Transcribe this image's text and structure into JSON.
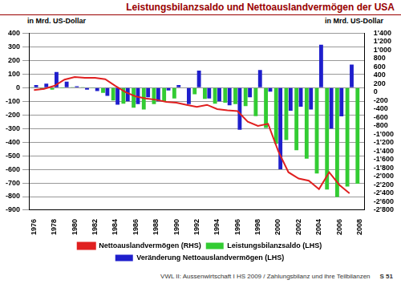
{
  "chart_data": {
    "type": "bar",
    "title": "Leistungsbilanzsaldo und Nettoauslandvermögen der USA",
    "y_label": "in Mrd. US-Dollar",
    "y2_label": "in Mrd. US-Dollar",
    "annotations": [
      "VWL II: Aussenwirtschaft I HS 2009 / Zahlungsbilanz und ihre Teilbilanzen",
      "S 51"
    ],
    "categories": [
      "1976",
      null,
      "1978",
      null,
      "1980",
      null,
      "1982",
      null,
      "1984",
      null,
      "1986",
      null,
      "1988",
      null,
      "1990",
      null,
      "1992",
      null,
      "1994",
      null,
      "1996",
      null,
      "1998",
      null,
      "2000",
      null,
      "2002",
      null,
      "2004",
      null,
      "2006",
      null,
      "2008"
    ],
    "series": [
      {
        "name": "Leistungsbilanzsaldo (LHS)",
        "type": "bar",
        "color": "#33cc33",
        "values": [
          4,
          -14,
          -15,
          -0.3,
          2,
          5,
          -5,
          -38,
          -94,
          -118,
          -147,
          -161,
          -121,
          -99,
          -79,
          3,
          -48,
          -82,
          -118,
          -110,
          -120,
          -136,
          -209,
          -296,
          -413,
          -385,
          -459,
          -521,
          -631,
          -749,
          -803,
          -726,
          -706
        ]
      },
      {
        "name": "Veränderung Nettoauslandvermögen (LHS)",
        "type": "bar",
        "color": "#1f1fcc",
        "values": [
          20,
          30,
          115,
          45,
          10,
          -15,
          -25,
          -60,
          -125,
          -100,
          -120,
          -70,
          -100,
          -20,
          20,
          -120,
          125,
          -80,
          -100,
          -130,
          -310,
          -70,
          130,
          -30,
          -600,
          -170,
          -140,
          -160,
          315,
          -300,
          -210,
          170,
          null
        ]
      },
      {
        "name": "Nettoauslandvermögen (RHS)",
        "type": "line",
        "axis": "y2",
        "color": "#e02020",
        "values": [
          50,
          80,
          150,
          300,
          360,
          340,
          340,
          310,
          150,
          0,
          -100,
          -150,
          -180,
          -230,
          -250,
          -300,
          -350,
          -300,
          -400,
          -430,
          -450,
          -700,
          -800,
          -750,
          -1400,
          -1900,
          -2050,
          -2100,
          -2300,
          -1900,
          -2200,
          -2400,
          null
        ]
      }
    ],
    "ylim": [
      -900,
      400
    ],
    "yticks": [
      -900,
      -800,
      -700,
      -600,
      -500,
      -400,
      -300,
      -200,
      -100,
      0,
      100,
      200,
      300,
      400
    ],
    "y2lim": [
      -2800,
      1400
    ],
    "y2ticks": [
      {
        "value": -2800,
        "label": "-2'800"
      },
      {
        "value": -2600,
        "label": "-2'600"
      },
      {
        "value": -2400,
        "label": "-2'400"
      },
      {
        "value": -2200,
        "label": "-2'200"
      },
      {
        "value": -2000,
        "label": "-2'000"
      },
      {
        "value": -1800,
        "label": "-1'800"
      },
      {
        "value": -1600,
        "label": "-1'600"
      },
      {
        "value": -1400,
        "label": "-1'400"
      },
      {
        "value": -1200,
        "label": "-1'200"
      },
      {
        "value": -1000,
        "label": "-1'000"
      },
      -800,
      -600,
      -400,
      -200,
      0,
      200,
      400,
      600,
      800,
      {
        "value": 1000,
        "label": "1'000"
      },
      {
        "value": 1200,
        "label": "1'200"
      },
      {
        "value": 1400,
        "label": "1'400"
      }
    ],
    "grid": true,
    "legend": "bottom"
  }
}
